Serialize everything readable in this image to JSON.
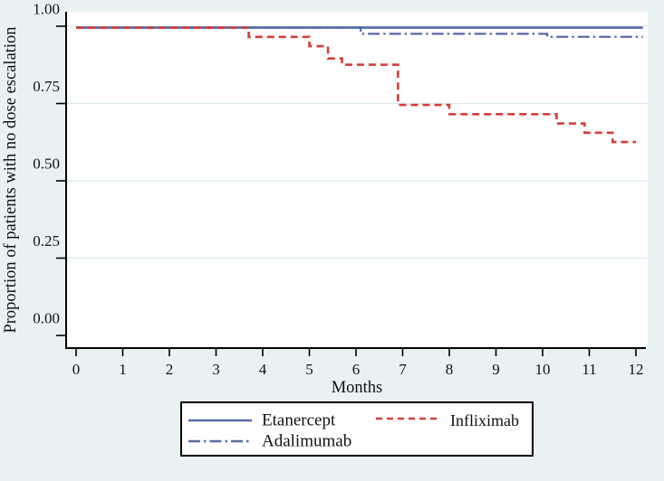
{
  "figure": {
    "background_color": "#e9f2f3",
    "plot_background_color": "#ffffff",
    "axis_color": "#000000",
    "grid_color": "#dceaec",
    "accent_blue": "#5569a8",
    "accent_red": "#d83c38"
  },
  "chart_data": {
    "type": "line",
    "subtype": "kaplan-meier-step",
    "title": "",
    "xlabel": "Months",
    "ylabel": "Proportion of patients with no dose escalation",
    "xlim": [
      0,
      12
    ],
    "ylim": [
      0.0,
      1.0
    ],
    "x_ticks": [
      0,
      1,
      2,
      3,
      4,
      5,
      6,
      7,
      8,
      9,
      10,
      11,
      12
    ],
    "y_ticks": [
      {
        "value": 1.0,
        "label": "1.00"
      },
      {
        "value": 0.75,
        "label": "0.75"
      },
      {
        "value": 0.5,
        "label": "0.50"
      },
      {
        "value": 0.25,
        "label": "0.25"
      },
      {
        "value": 0.0,
        "label": "0.00"
      }
    ],
    "grid": "horizontal-faint",
    "legend_position": "bottom-boxed",
    "series": [
      {
        "name": "Etanercept",
        "color": "#5569a8",
        "style": "solid",
        "points": [
          [
            0,
            0.94
          ]
        ],
        "end_month": 12.15
      },
      {
        "name": "Adalimumab",
        "color": "#5569a8",
        "style": "dash-dot",
        "points": [
          [
            0,
            0.94
          ],
          [
            6.1,
            0.92
          ],
          [
            10.1,
            0.91
          ]
        ],
        "end_month": 12.15
      },
      {
        "name": "Infliximab",
        "color": "#d83c38",
        "style": "dashed",
        "points": [
          [
            0,
            0.94
          ],
          [
            3.7,
            0.91
          ],
          [
            5.0,
            0.88
          ],
          [
            5.4,
            0.84
          ],
          [
            5.7,
            0.82
          ],
          [
            6.9,
            0.69
          ],
          [
            8.0,
            0.66
          ],
          [
            10.3,
            0.63
          ],
          [
            10.9,
            0.6
          ],
          [
            11.5,
            0.57
          ]
        ],
        "end_month": 12.0
      }
    ]
  },
  "legend": {
    "entries": [
      {
        "label": "Etanercept",
        "style": "solid",
        "color": "#5569a8"
      },
      {
        "label": "Infliximab",
        "style": "dashed",
        "color": "#d83c38"
      },
      {
        "label": "Adalimumab",
        "style": "dash-dot",
        "color": "#5569a8"
      }
    ]
  }
}
